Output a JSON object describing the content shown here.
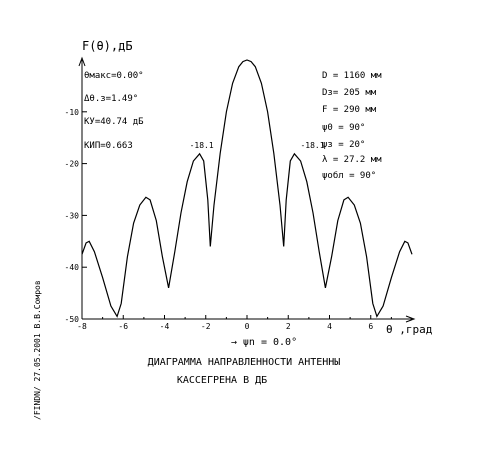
{
  "chart_data": {
    "type": "line",
    "ylabel": "F(θ),дБ",
    "xlabel": "θ ,град",
    "xlim": [
      -8,
      8
    ],
    "ylim": [
      -50,
      0
    ],
    "x_ticks": [
      -8,
      -6,
      -4,
      -2,
      0,
      2,
      4,
      6
    ],
    "y_ticks": [
      -10,
      -20,
      -30,
      -40,
      -50
    ],
    "grid": false,
    "series": [
      {
        "points": [
          [
            -8.0,
            -37.5
          ],
          [
            -7.8,
            -35.3
          ],
          [
            -7.65,
            -35.0
          ],
          [
            -7.4,
            -37.0
          ],
          [
            -7.0,
            -42.0
          ],
          [
            -6.6,
            -47.5
          ],
          [
            -6.3,
            -49.5
          ],
          [
            -6.1,
            -47.0
          ],
          [
            -5.8,
            -38.0
          ],
          [
            -5.5,
            -31.5
          ],
          [
            -5.2,
            -28.0
          ],
          [
            -4.9,
            -26.5
          ],
          [
            -4.7,
            -27.0
          ],
          [
            -4.4,
            -31.0
          ],
          [
            -4.1,
            -38.0
          ],
          [
            -3.8,
            -44.0
          ],
          [
            -3.5,
            -37.0
          ],
          [
            -3.2,
            -29.5
          ],
          [
            -2.9,
            -23.5
          ],
          [
            -2.6,
            -19.5
          ],
          [
            -2.3,
            -18.1
          ],
          [
            -2.1,
            -19.5
          ],
          [
            -1.9,
            -27.0
          ],
          [
            -1.78,
            -36.0
          ],
          [
            -1.6,
            -28.0
          ],
          [
            -1.3,
            -18.0
          ],
          [
            -1.0,
            -10.0
          ],
          [
            -0.7,
            -4.5
          ],
          [
            -0.4,
            -1.3
          ],
          [
            -0.2,
            -0.3
          ],
          [
            0.0,
            0.0
          ],
          [
            0.2,
            -0.3
          ],
          [
            0.4,
            -1.3
          ],
          [
            0.7,
            -4.5
          ],
          [
            1.0,
            -10.0
          ],
          [
            1.3,
            -18.0
          ],
          [
            1.6,
            -28.0
          ],
          [
            1.78,
            -36.0
          ],
          [
            1.9,
            -27.0
          ],
          [
            2.1,
            -19.5
          ],
          [
            2.3,
            -18.1
          ],
          [
            2.6,
            -19.5
          ],
          [
            2.9,
            -23.5
          ],
          [
            3.2,
            -29.5
          ],
          [
            3.5,
            -37.0
          ],
          [
            3.8,
            -44.0
          ],
          [
            4.1,
            -38.0
          ],
          [
            4.4,
            -31.0
          ],
          [
            4.7,
            -27.0
          ],
          [
            4.9,
            -26.5
          ],
          [
            5.2,
            -28.0
          ],
          [
            5.5,
            -31.5
          ],
          [
            5.8,
            -38.0
          ],
          [
            6.1,
            -47.0
          ],
          [
            6.3,
            -49.5
          ],
          [
            6.6,
            -47.5
          ],
          [
            7.0,
            -42.0
          ],
          [
            7.4,
            -37.0
          ],
          [
            7.65,
            -35.0
          ],
          [
            7.8,
            -35.3
          ],
          [
            8.0,
            -37.5
          ]
        ]
      }
    ],
    "peak_annotations": [
      {
        "x": -2.3,
        "y": -18.1,
        "label": "-18.1"
      },
      {
        "x": 2.3,
        "y": -18.1,
        "label": "-18.1"
      }
    ],
    "params_left": [
      "θмакс=0.00°",
      "Δθ.з=1.49°",
      "КУ=40.74 дБ",
      "КИП=0.663"
    ],
    "params_right": [
      "D = 1160 мм",
      "Dз= 205 мм",
      "F = 290 мм",
      "ψ0 = 90°",
      "ψз = 20°",
      "λ = 27.2 мм",
      "ψобл = 90°"
    ],
    "cut_label": "→ ψn = 0.0°",
    "caption": [
      "ДИАГРАММА НАПРАВЛЕННОСТИ АНТЕННЫ",
      "КАССЕГРЕНА В ДБ"
    ],
    "side_note": "/FINDN/ 27.05.2001 В.В.Сомров"
  }
}
